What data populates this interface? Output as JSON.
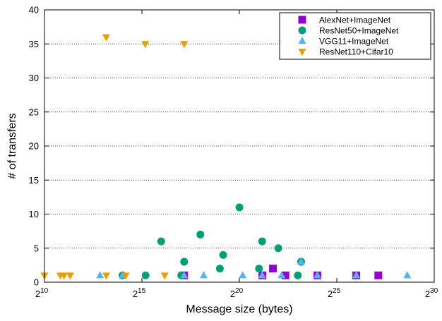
{
  "chart_data": {
    "type": "scatter",
    "title": "",
    "xlabel": "Message size (bytes)",
    "ylabel": "# of transfers",
    "x_scale": "log2",
    "x_ticks": [
      {
        "base": "2",
        "exp": "10",
        "value": 1024
      },
      {
        "base": "2",
        "exp": "15",
        "value": 32768
      },
      {
        "base": "2",
        "exp": "20",
        "value": 1048576
      },
      {
        "base": "2",
        "exp": "25",
        "value": 33554432
      },
      {
        "base": "2",
        "exp": "30",
        "value": 1073741824
      }
    ],
    "y_ticks": [
      "0",
      "5",
      "10",
      "15",
      "20",
      "25",
      "30",
      "35",
      "40"
    ],
    "xlim": [
      1024,
      1073741824
    ],
    "ylim": [
      0,
      40
    ],
    "grid": "horizontal-dotted",
    "legend_position": "top-right",
    "series": [
      {
        "name": "AlexNet+ImageNet",
        "marker": "square",
        "color": "#9400d3",
        "points": [
          {
            "x": 147000,
            "y": 1
          },
          {
            "x": 2380000,
            "y": 1
          },
          {
            "x": 3460000,
            "y": 2
          },
          {
            "x": 5400000,
            "y": 1
          },
          {
            "x": 16800000,
            "y": 1
          },
          {
            "x": 67100000,
            "y": 1
          },
          {
            "x": 147000000,
            "y": 1
          }
        ]
      },
      {
        "name": "ResNet50+ImageNet",
        "marker": "circle",
        "color": "#009e73",
        "points": [
          {
            "x": 16400,
            "y": 1
          },
          {
            "x": 37300,
            "y": 1
          },
          {
            "x": 65000,
            "y": 6
          },
          {
            "x": 133000,
            "y": 1
          },
          {
            "x": 147000,
            "y": 3
          },
          {
            "x": 262000,
            "y": 7
          },
          {
            "x": 524000,
            "y": 2
          },
          {
            "x": 590000,
            "y": 4
          },
          {
            "x": 1050000,
            "y": 11
          },
          {
            "x": 2110000,
            "y": 2
          },
          {
            "x": 2360000,
            "y": 6
          },
          {
            "x": 4190000,
            "y": 5
          },
          {
            "x": 8390000,
            "y": 1
          },
          {
            "x": 9440000,
            "y": 3
          }
        ]
      },
      {
        "name": "VGG11+ImageNet",
        "marker": "triangle-up",
        "color": "#56b4e9",
        "points": [
          {
            "x": 7400,
            "y": 1
          },
          {
            "x": 16400,
            "y": 1
          },
          {
            "x": 147000,
            "y": 1
          },
          {
            "x": 295000,
            "y": 1
          },
          {
            "x": 1180000,
            "y": 1
          },
          {
            "x": 2360000,
            "y": 1
          },
          {
            "x": 4720000,
            "y": 1
          },
          {
            "x": 9440000,
            "y": 3
          },
          {
            "x": 16800000,
            "y": 1
          },
          {
            "x": 67100000,
            "y": 1
          },
          {
            "x": 411000000,
            "y": 1
          }
        ]
      },
      {
        "name": "ResNet110+Cifar10",
        "marker": "triangle-down",
        "color": "#e69f00",
        "points": [
          {
            "x": 1024,
            "y": 1
          },
          {
            "x": 1800,
            "y": 1
          },
          {
            "x": 2048,
            "y": 1
          },
          {
            "x": 2560,
            "y": 1
          },
          {
            "x": 9220,
            "y": 36
          },
          {
            "x": 9220,
            "y": 1
          },
          {
            "x": 18400,
            "y": 1
          },
          {
            "x": 36900,
            "y": 35
          },
          {
            "x": 73700,
            "y": 1
          },
          {
            "x": 147000,
            "y": 35
          }
        ]
      }
    ]
  }
}
